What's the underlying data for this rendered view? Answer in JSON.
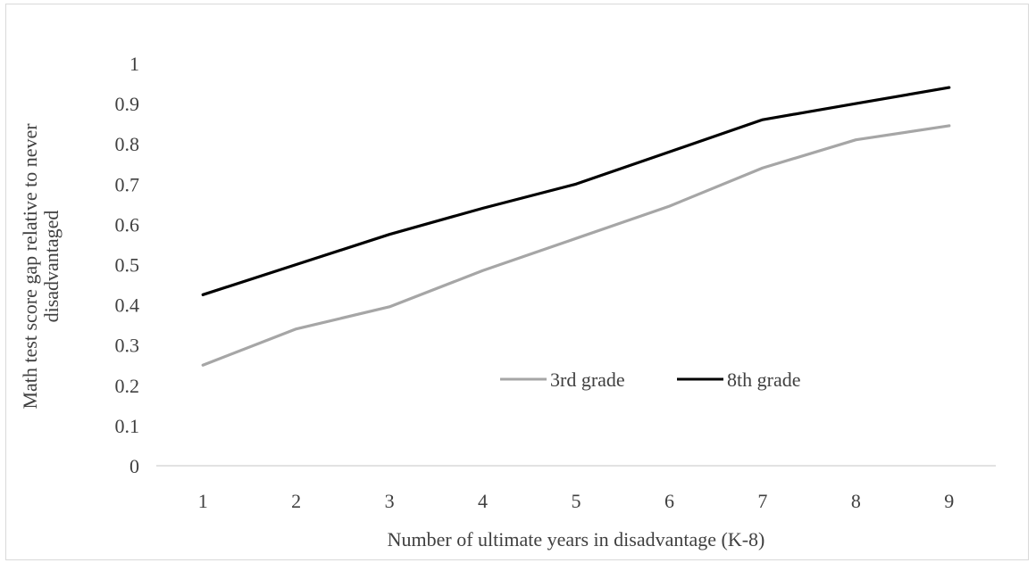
{
  "chart_data": {
    "type": "line",
    "title": "",
    "xlabel": "Number of ultimate years in disadvantage (K-8)",
    "ylabel_lines": [
      "Math test score gap relative to never",
      "disadvantaged"
    ],
    "x": [
      1,
      2,
      3,
      4,
      5,
      6,
      7,
      8,
      9
    ],
    "xticks": [
      "1",
      "2",
      "3",
      "4",
      "5",
      "6",
      "7",
      "8",
      "9"
    ],
    "yticks": [
      "0",
      "0.1",
      "0.2",
      "0.3",
      "0.4",
      "0.5",
      "0.6",
      "0.7",
      "0.8",
      "0.9",
      "1"
    ],
    "ylim": [
      0,
      1
    ],
    "grid": false,
    "legend_position": "center",
    "series": [
      {
        "name": "3rd grade",
        "color": "#a6a6a6",
        "values": [
          0.25,
          0.34,
          0.395,
          0.485,
          0.565,
          0.645,
          0.74,
          0.81,
          0.845
        ]
      },
      {
        "name": "8th grade",
        "color": "#000000",
        "values": [
          0.425,
          0.5,
          0.575,
          0.64,
          0.7,
          0.78,
          0.86,
          0.9,
          0.94
        ]
      }
    ]
  }
}
